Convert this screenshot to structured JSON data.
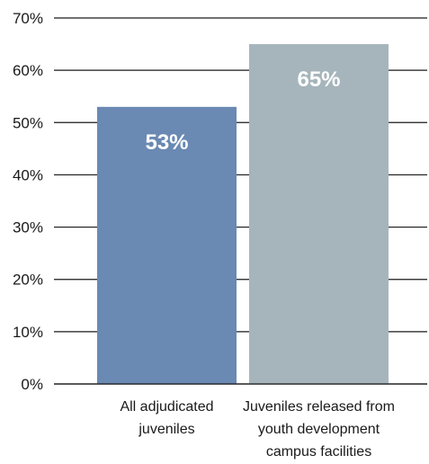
{
  "chart_data": {
    "type": "bar",
    "categories": [
      [
        "All adjudicated",
        "juveniles"
      ],
      [
        "Juveniles released from",
        "youth development",
        "campus facilities"
      ]
    ],
    "values": [
      53,
      65
    ],
    "data_labels": [
      "53%",
      "65%"
    ],
    "bar_colors": [
      "#6a89b3",
      "#a6b5bb"
    ],
    "ylim": [
      0,
      70
    ],
    "yticks": [
      0,
      10,
      20,
      30,
      40,
      50,
      60,
      70
    ],
    "ytick_labels": [
      "0%",
      "10%",
      "20%",
      "30%",
      "40%",
      "50%",
      "60%",
      "70%"
    ],
    "grid": true,
    "title": "",
    "xlabel": "",
    "ylabel": ""
  }
}
